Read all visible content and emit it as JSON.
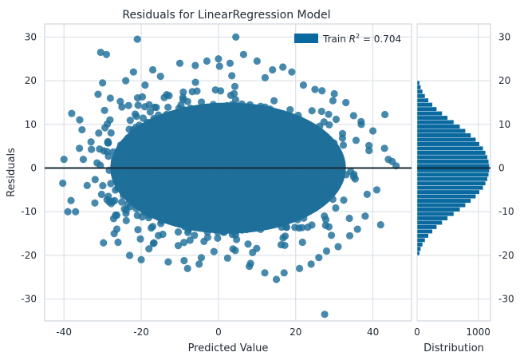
{
  "chart_data": {
    "type": "scatter",
    "title": "Residuals for LinearRegression Model",
    "xlabel": "Predicted Value",
    "ylabel": "Residuals",
    "xlim": [
      -45,
      50
    ],
    "ylim": [
      -35,
      33
    ],
    "x_ticks": [
      -40,
      -20,
      0,
      20,
      40
    ],
    "y_ticks": [
      -30,
      -20,
      -10,
      0,
      10,
      20,
      30
    ],
    "grid": true,
    "legend": {
      "label_prefix": "Train ",
      "label_math": "R",
      "label_sup": "2",
      "label_suffix": " = 0.704",
      "placement": "top-right"
    },
    "zero_line": 0,
    "colors": {
      "points": "#1f6f9a",
      "bars": "#0a6aa0",
      "zero_line": "#1a2a33",
      "grid": "#d4dce3",
      "text": "#222a35"
    },
    "series": [
      {
        "name": "Train",
        "kind": "scatter",
        "center": {
          "x": 0,
          "y": 0
        },
        "spread": {
          "x": 13,
          "y": 7
        },
        "core_extent": {
          "x": [
            -30,
            35
          ],
          "y": [
            -18,
            18
          ]
        },
        "points": [
          [
            -40,
            2
          ],
          [
            -38,
            12.5
          ],
          [
            -39,
            -10
          ],
          [
            -37,
            -10
          ],
          [
            -36,
            4.5
          ],
          [
            -35,
            2
          ],
          [
            -34,
            -4
          ],
          [
            -33,
            6
          ],
          [
            -32,
            -8
          ],
          [
            -31,
            8
          ],
          [
            -30.5,
            26.5
          ],
          [
            -29,
            26
          ],
          [
            -30,
            19.5
          ],
          [
            -28,
            16
          ],
          [
            -27,
            -15
          ],
          [
            -26,
            -17
          ],
          [
            -25,
            14
          ],
          [
            -24,
            20
          ],
          [
            -23,
            -20
          ],
          [
            -22,
            22
          ],
          [
            -21,
            29.5
          ],
          [
            -20,
            -21
          ],
          [
            -19,
            19
          ],
          [
            -18,
            -18.5
          ],
          [
            -17,
            22.5
          ],
          [
            -15,
            21
          ],
          [
            -13,
            -21.5
          ],
          [
            -10,
            24
          ],
          [
            -8,
            -23
          ],
          [
            -6,
            23.5
          ],
          [
            -5,
            -22
          ],
          [
            -3,
            24.5
          ],
          [
            0,
            25
          ],
          [
            3,
            24
          ],
          [
            4.5,
            30
          ],
          [
            6.5,
            26
          ],
          [
            8,
            -22.5
          ],
          [
            10,
            24.5
          ],
          [
            12,
            -24
          ],
          [
            14,
            22.5
          ],
          [
            15,
            -25.5
          ],
          [
            17,
            -24
          ],
          [
            19,
            22
          ],
          [
            21,
            -23
          ],
          [
            22,
            19
          ],
          [
            24,
            -22
          ],
          [
            25,
            18
          ],
          [
            26,
            -20.5
          ],
          [
            27.5,
            -33.5
          ],
          [
            28,
            -19
          ],
          [
            30,
            17
          ],
          [
            31,
            -18
          ],
          [
            33,
            15
          ],
          [
            34,
            -15.5
          ],
          [
            35,
            12
          ],
          [
            36,
            -14
          ],
          [
            37,
            10
          ],
          [
            38,
            -11
          ],
          [
            38.5,
            -6
          ],
          [
            39,
            4
          ],
          [
            40,
            8.5
          ],
          [
            41,
            -5
          ],
          [
            42,
            -13
          ],
          [
            43,
            4.5
          ],
          [
            44,
            2
          ],
          [
            45,
            1.5
          ],
          [
            46,
            0.5
          ]
        ]
      }
    ],
    "distribution": {
      "xlabel": "Distribution",
      "x_ticks": [
        0,
        1000
      ],
      "xlim": [
        0,
        1200
      ],
      "bin_edges": [
        -20,
        -19,
        -18,
        -17,
        -16,
        -15,
        -14,
        -13,
        -12,
        -11,
        -10,
        -9,
        -8,
        -7,
        -6,
        -5,
        -4,
        -3,
        -2,
        -1,
        0,
        1,
        2,
        3,
        4,
        5,
        6,
        7,
        8,
        9,
        10,
        11,
        12,
        13,
        14,
        15,
        16,
        17,
        18,
        19,
        20
      ],
      "counts": [
        40,
        60,
        90,
        130,
        185,
        250,
        320,
        410,
        500,
        600,
        700,
        790,
        880,
        960,
        1020,
        1080,
        1120,
        1150,
        1170,
        1180,
        1180,
        1170,
        1150,
        1120,
        1080,
        1020,
        960,
        880,
        790,
        700,
        600,
        500,
        410,
        320,
        250,
        185,
        130,
        90,
        60,
        40
      ]
    }
  }
}
